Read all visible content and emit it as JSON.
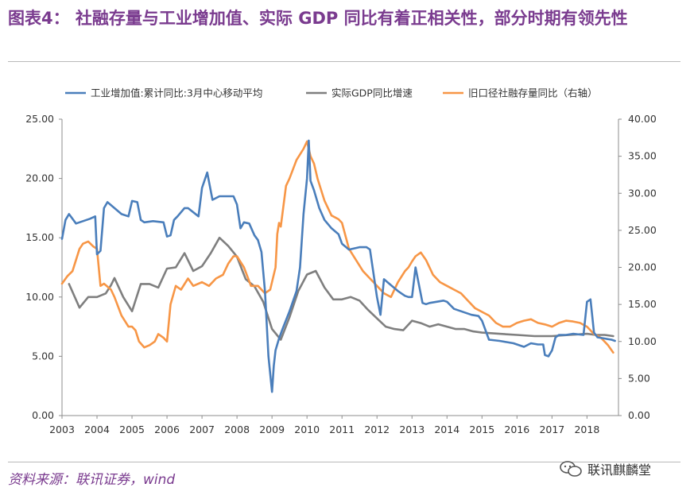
{
  "header": {
    "title": "图表4：  社融存量与工业增加值、实际  GDP  同比有着正相关性，部分时期有领先性"
  },
  "footer": {
    "source": "资料来源：联讯证券，wind",
    "watermark": "联讯麒麟堂"
  },
  "colors": {
    "industry": "#4a7ebb",
    "gdp": "#7f7f7f",
    "tsf": "#f79646",
    "title": "#7a3b8f"
  },
  "chart_data": {
    "type": "line",
    "title": "",
    "xlabel": "",
    "ylabel": "",
    "ylabel_right": "",
    "xlim": [
      2003,
      2018.9
    ],
    "ylim": [
      0,
      25
    ],
    "ylim_right": [
      0,
      40
    ],
    "x_ticks": [
      "2003",
      "2004",
      "2005",
      "2006",
      "2007",
      "2008",
      "2009",
      "2010",
      "2011",
      "2012",
      "2013",
      "2014",
      "2015",
      "2016",
      "2017",
      "2018"
    ],
    "y_ticks": [
      "0.00",
      "5.00",
      "10.00",
      "15.00",
      "20.00",
      "25.00"
    ],
    "y_ticks_right": [
      "0.00",
      "5.00",
      "10.00",
      "15.00",
      "20.00",
      "25.00",
      "30.00",
      "35.00",
      "40.00"
    ],
    "legend_position": "top",
    "series": [
      {
        "name": "工业增加值:累计同比:3月中心移动平均",
        "axis": "left",
        "color": "#4a7ebb",
        "x": [
          2003.0,
          2003.1,
          2003.2,
          2003.4,
          2003.6,
          2003.8,
          2003.95,
          2004.0,
          2004.1,
          2004.2,
          2004.3,
          2004.5,
          2004.7,
          2004.9,
          2005.0,
          2005.15,
          2005.25,
          2005.35,
          2005.6,
          2005.9,
          2006.0,
          2006.1,
          2006.2,
          2006.3,
          2006.5,
          2006.6,
          2006.9,
          2007.0,
          2007.15,
          2007.3,
          2007.5,
          2007.6,
          2007.9,
          2008.0,
          2008.1,
          2008.2,
          2008.35,
          2008.5,
          2008.6,
          2008.7,
          2008.8,
          2008.9,
          2009.0,
          2009.05,
          2009.1,
          2009.2,
          2009.3,
          2009.5,
          2009.7,
          2009.8,
          2009.9,
          2010.0,
          2010.05,
          2010.1,
          2010.2,
          2010.35,
          2010.5,
          2010.7,
          2010.9,
          2011.0,
          2011.2,
          2011.5,
          2011.7,
          2011.8,
          2011.9,
          2012.0,
          2012.1,
          2012.2,
          2012.4,
          2012.6,
          2012.8,
          2012.9,
          2013.0,
          2013.1,
          2013.3,
          2013.4,
          2013.5,
          2013.7,
          2013.9,
          2014.0,
          2014.2,
          2014.5,
          2014.7,
          2014.9,
          2015.0,
          2015.2,
          2015.5,
          2015.7,
          2015.9,
          2016.0,
          2016.2,
          2016.4,
          2016.6,
          2016.75,
          2016.8,
          2016.9,
          2017.0,
          2017.1,
          2017.2,
          2017.4,
          2017.6,
          2017.9,
          2018.0,
          2018.1,
          2018.2,
          2018.3,
          2018.5,
          2018.7,
          2018.8
        ],
        "values": [
          14.9,
          16.5,
          17.0,
          16.2,
          16.4,
          16.6,
          16.8,
          13.6,
          13.9,
          17.5,
          18.0,
          17.5,
          17.0,
          16.8,
          18.1,
          18.0,
          16.5,
          16.3,
          16.4,
          16.3,
          15.1,
          15.2,
          16.5,
          16.8,
          17.5,
          17.5,
          16.8,
          19.2,
          20.5,
          18.2,
          18.5,
          18.5,
          18.5,
          17.8,
          15.8,
          16.3,
          16.2,
          15.2,
          14.8,
          13.8,
          10.5,
          5.0,
          2.0,
          4.2,
          5.5,
          6.5,
          7.3,
          8.8,
          10.5,
          12.5,
          17.0,
          20.0,
          23.2,
          19.8,
          19.0,
          17.5,
          16.5,
          15.8,
          15.3,
          14.5,
          14.0,
          14.2,
          14.2,
          14.0,
          12.0,
          10.0,
          8.5,
          11.5,
          11.0,
          10.5,
          10.1,
          10.0,
          10.0,
          12.5,
          9.5,
          9.4,
          9.5,
          9.6,
          9.7,
          9.6,
          9.0,
          8.7,
          8.5,
          8.4,
          8.0,
          6.4,
          6.3,
          6.2,
          6.1,
          6.0,
          5.8,
          6.1,
          6.0,
          6.0,
          5.1,
          5.0,
          5.5,
          6.6,
          6.8,
          6.8,
          6.9,
          6.8,
          9.6,
          9.8,
          7.0,
          6.6,
          6.5,
          6.4,
          6.3
        ]
      },
      {
        "name": "实际GDP同比增速",
        "axis": "left",
        "color": "#7f7f7f",
        "x": [
          2003.2,
          2003.5,
          2003.75,
          2004.0,
          2004.25,
          2004.4,
          2004.5,
          2004.75,
          2005.0,
          2005.25,
          2005.5,
          2005.75,
          2006.0,
          2006.25,
          2006.5,
          2006.75,
          2007.0,
          2007.25,
          2007.5,
          2007.75,
          2008.0,
          2008.25,
          2008.5,
          2008.75,
          2009.0,
          2009.25,
          2009.5,
          2009.75,
          2010.0,
          2010.25,
          2010.5,
          2010.75,
          2011.0,
          2011.25,
          2011.5,
          2011.75,
          2012.0,
          2012.25,
          2012.5,
          2012.75,
          2013.0,
          2013.25,
          2013.5,
          2013.75,
          2014.0,
          2014.25,
          2014.5,
          2014.75,
          2015.0,
          2015.5,
          2016.0,
          2016.5,
          2017.0,
          2017.5,
          2018.0,
          2018.25,
          2018.5,
          2018.75
        ],
        "values": [
          11.1,
          9.1,
          10.0,
          10.0,
          10.3,
          11.0,
          11.6,
          10.0,
          8.8,
          11.1,
          11.1,
          10.8,
          12.4,
          12.5,
          13.7,
          12.2,
          12.6,
          13.7,
          15.0,
          14.3,
          13.4,
          11.5,
          10.9,
          9.6,
          7.3,
          6.4,
          8.3,
          10.5,
          11.9,
          12.2,
          10.8,
          9.8,
          9.8,
          10.0,
          9.7,
          8.9,
          8.2,
          7.5,
          7.3,
          7.2,
          8.0,
          7.8,
          7.5,
          7.7,
          7.5,
          7.3,
          7.3,
          7.1,
          7.0,
          6.9,
          6.8,
          6.7,
          6.7,
          6.8,
          6.9,
          6.8,
          6.8,
          6.7
        ]
      },
      {
        "name": "旧口径社融存量同比（右轴）",
        "axis": "right",
        "color": "#f79646",
        "x": [
          2003.0,
          2003.15,
          2003.3,
          2003.5,
          2003.6,
          2003.75,
          2003.9,
          2004.0,
          2004.1,
          2004.2,
          2004.4,
          2004.5,
          2004.7,
          2004.9,
          2005.0,
          2005.1,
          2005.2,
          2005.35,
          2005.5,
          2005.65,
          2005.75,
          2005.9,
          2006.0,
          2006.1,
          2006.25,
          2006.4,
          2006.6,
          2006.75,
          2006.9,
          2007.0,
          2007.2,
          2007.4,
          2007.6,
          2007.75,
          2007.9,
          2008.0,
          2008.2,
          2008.4,
          2008.6,
          2008.8,
          2008.95,
          2009.1,
          2009.15,
          2009.2,
          2009.25,
          2009.4,
          2009.5,
          2009.7,
          2009.9,
          2010.0,
          2010.05,
          2010.1,
          2010.2,
          2010.3,
          2010.5,
          2010.7,
          2010.9,
          2011.0,
          2011.2,
          2011.4,
          2011.6,
          2011.8,
          2011.9,
          2012.0,
          2012.2,
          2012.4,
          2012.6,
          2012.8,
          2012.9,
          2013.0,
          2013.1,
          2013.25,
          2013.4,
          2013.6,
          2013.8,
          2014.0,
          2014.2,
          2014.4,
          2014.6,
          2014.8,
          2015.0,
          2015.2,
          2015.4,
          2015.6,
          2015.8,
          2016.0,
          2016.2,
          2016.4,
          2016.6,
          2016.8,
          2017.0,
          2017.2,
          2017.4,
          2017.6,
          2017.8,
          2018.0,
          2018.2,
          2018.4,
          2018.6,
          2018.75
        ],
        "values": [
          17.8,
          18.8,
          19.5,
          22.5,
          23.2,
          23.5,
          22.8,
          22.5,
          17.5,
          17.8,
          17.0,
          16.0,
          13.5,
          12.0,
          12.0,
          11.5,
          10.0,
          9.2,
          9.5,
          10.0,
          11.0,
          10.5,
          10.0,
          15.0,
          17.5,
          17.0,
          18.5,
          17.5,
          17.8,
          18.0,
          17.5,
          18.5,
          19.0,
          20.5,
          21.5,
          21.5,
          20.0,
          17.5,
          17.5,
          16.5,
          17.0,
          20.0,
          24.5,
          26.0,
          25.5,
          31.0,
          32.0,
          34.5,
          36.0,
          37.0,
          36.0,
          35.0,
          34.0,
          32.0,
          29.0,
          27.0,
          26.5,
          26.0,
          22.5,
          21.0,
          19.5,
          18.5,
          18.0,
          17.5,
          16.5,
          16.0,
          18.0,
          19.5,
          20.0,
          20.8,
          21.5,
          22.0,
          21.0,
          19.0,
          18.0,
          17.5,
          17.0,
          16.5,
          15.5,
          14.5,
          14.0,
          13.5,
          12.5,
          12.0,
          12.0,
          12.5,
          12.8,
          13.0,
          12.5,
          12.3,
          12.0,
          12.5,
          12.8,
          12.7,
          12.5,
          12.0,
          11.0,
          10.5,
          9.5,
          8.5
        ]
      }
    ]
  }
}
